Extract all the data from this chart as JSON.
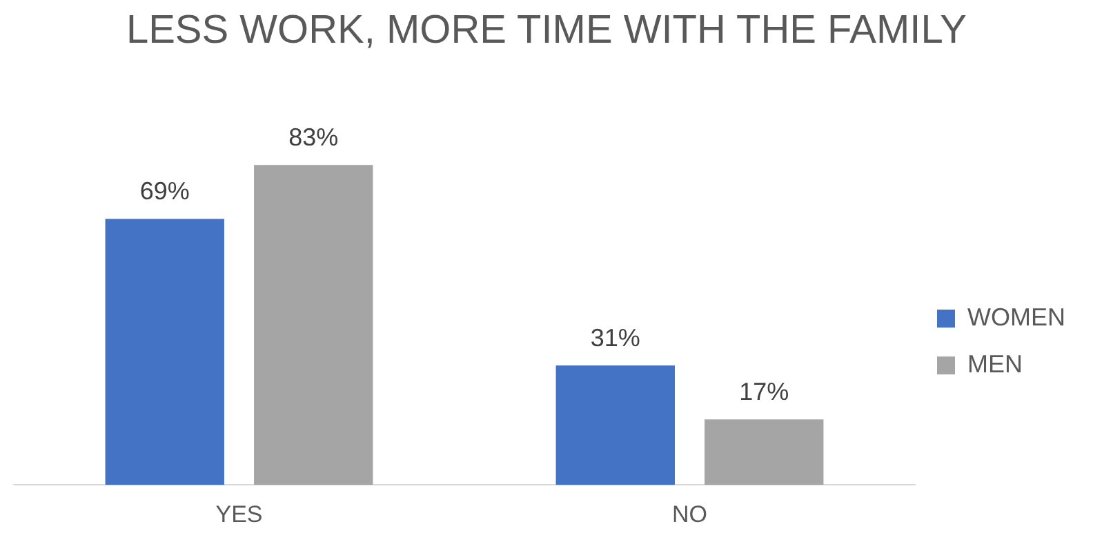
{
  "chart_data": {
    "type": "bar",
    "title": "LESS WORK, MORE TIME WITH THE FAMILY",
    "categories": [
      "YES",
      "NO"
    ],
    "series": [
      {
        "name": "WOMEN",
        "color": "#4472c4",
        "values": [
          69,
          31
        ],
        "value_labels": [
          "69%",
          "31%"
        ]
      },
      {
        "name": "MEN",
        "color": "#a5a5a5",
        "values": [
          83,
          17
        ],
        "value_labels": [
          "83%",
          "17%"
        ]
      }
    ],
    "legend": "right",
    "grid": false
  }
}
